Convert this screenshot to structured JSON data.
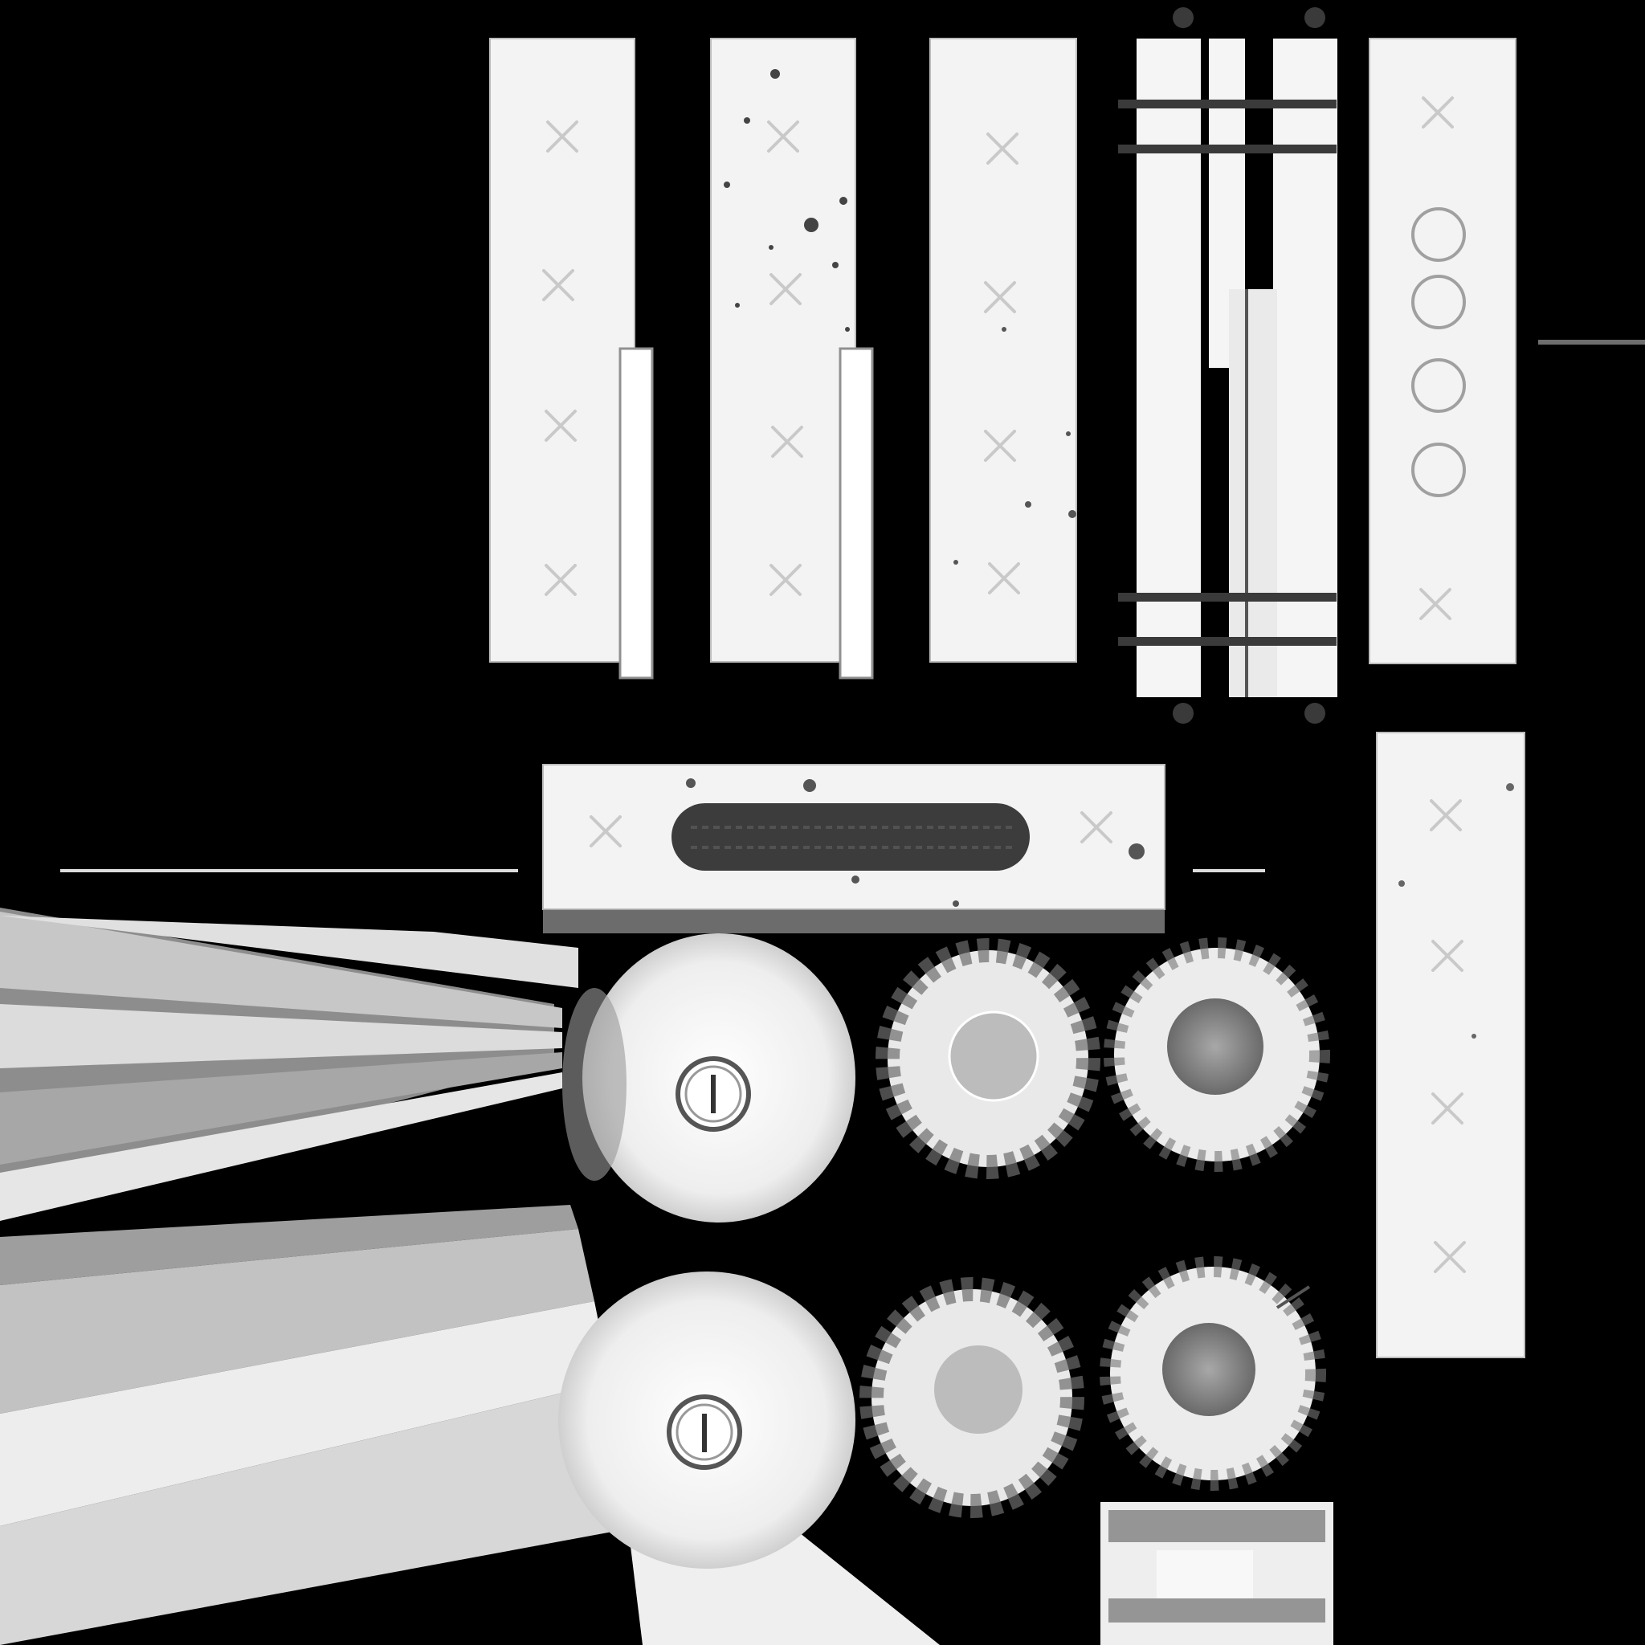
{
  "texture": {
    "background_color": "#000000",
    "surface_color": "#f2f2f2",
    "mark_color": "#c8c8c8",
    "grime_color": "#3e3e3e",
    "bar_color": "#3a3a3a",
    "icons": {
      "cross": "x-mark-icon",
      "hole": "hole-ring-icon",
      "screw": "screw-head-icon",
      "knob": "knob-icon"
    }
  }
}
